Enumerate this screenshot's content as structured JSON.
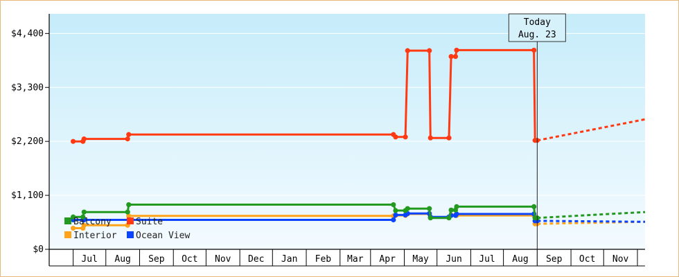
{
  "chart_data": {
    "type": "line",
    "step": true,
    "y_axis": {
      "min": 0,
      "max": 4800,
      "ticks": [
        {
          "value": 0,
          "label": "$0"
        },
        {
          "value": 1100,
          "label": "$1,100"
        },
        {
          "value": 2200,
          "label": "$2,200"
        },
        {
          "value": 3300,
          "label": "$3,300"
        },
        {
          "value": 4400,
          "label": "$4,400"
        }
      ]
    },
    "x_axis": {
      "start": "2024-06-01",
      "end": "2025-11-30",
      "month_labels": [
        "Jul",
        "Aug",
        "Sep",
        "Oct",
        "Nov",
        "Dec",
        "Jan",
        "Feb",
        "Mar",
        "Apr",
        "May",
        "Jun",
        "Jul",
        "Aug",
        "Sep",
        "Oct",
        "Nov"
      ],
      "month_starts": [
        "2024-06-23",
        "2024-07-23",
        "2024-08-23",
        "2024-09-23",
        "2024-10-23",
        "2024-11-23",
        "2024-12-23",
        "2025-01-23",
        "2025-02-23",
        "2025-03-23",
        "2025-04-23",
        "2025-05-23",
        "2025-06-23",
        "2025-07-23",
        "2025-08-23",
        "2025-09-23",
        "2025-10-23",
        "2025-11-23"
      ]
    },
    "today": {
      "date": "2025-08-23",
      "label_line1": "Today",
      "label_line2": "Aug. 23"
    },
    "legend": [
      {
        "name": "Balcony",
        "color": "#22991f"
      },
      {
        "name": "Suite",
        "color": "#ff3a12"
      },
      {
        "name": "Interior",
        "color": "#ffa31a"
      },
      {
        "name": "Ocean View",
        "color": "#0a44ff"
      }
    ],
    "series": [
      {
        "name": "Suite",
        "color": "#ff3a12",
        "points": [
          [
            "2024-06-23",
            2200
          ],
          [
            "2024-07-02",
            2200
          ],
          [
            "2024-07-03",
            2250
          ],
          [
            "2024-08-12",
            2250
          ],
          [
            "2024-08-13",
            2340
          ],
          [
            "2025-04-13",
            2340
          ],
          [
            "2025-04-15",
            2290
          ],
          [
            "2025-04-24",
            2290
          ],
          [
            "2025-04-26",
            4050
          ],
          [
            "2025-05-16",
            4050
          ],
          [
            "2025-05-17",
            2270
          ],
          [
            "2025-06-03",
            2270
          ],
          [
            "2025-06-05",
            3930
          ],
          [
            "2025-06-09",
            3930
          ],
          [
            "2025-06-10",
            4060
          ],
          [
            "2025-08-20",
            4060
          ],
          [
            "2025-08-21",
            2220
          ],
          [
            "2025-08-23",
            2220
          ]
        ],
        "projection": [
          [
            "2025-08-23",
            2220
          ],
          [
            "2025-11-30",
            2650
          ]
        ]
      },
      {
        "name": "Balcony",
        "color": "#22991f",
        "points": [
          [
            "2024-06-23",
            660
          ],
          [
            "2024-07-02",
            660
          ],
          [
            "2024-07-03",
            760
          ],
          [
            "2024-08-12",
            760
          ],
          [
            "2024-08-13",
            910
          ],
          [
            "2025-04-13",
            910
          ],
          [
            "2025-04-15",
            790
          ],
          [
            "2025-04-24",
            790
          ],
          [
            "2025-04-26",
            830
          ],
          [
            "2025-05-16",
            830
          ],
          [
            "2025-05-17",
            640
          ],
          [
            "2025-06-03",
            640
          ],
          [
            "2025-06-05",
            800
          ],
          [
            "2025-06-09",
            800
          ],
          [
            "2025-06-10",
            870
          ],
          [
            "2025-08-20",
            870
          ],
          [
            "2025-08-21",
            640
          ],
          [
            "2025-08-23",
            640
          ]
        ],
        "projection": [
          [
            "2025-08-23",
            640
          ],
          [
            "2025-11-30",
            760
          ]
        ]
      },
      {
        "name": "Interior",
        "color": "#ffa31a",
        "points": [
          [
            "2024-06-23",
            430
          ],
          [
            "2024-07-02",
            430
          ],
          [
            "2024-07-03",
            490
          ],
          [
            "2024-08-12",
            490
          ],
          [
            "2024-08-13",
            680
          ],
          [
            "2025-04-13",
            680
          ],
          [
            "2025-04-15",
            690
          ],
          [
            "2025-04-24",
            690
          ],
          [
            "2025-04-26",
            720
          ],
          [
            "2025-05-16",
            720
          ],
          [
            "2025-05-17",
            650
          ],
          [
            "2025-06-03",
            650
          ],
          [
            "2025-06-05",
            700
          ],
          [
            "2025-06-09",
            700
          ],
          [
            "2025-06-10",
            690
          ],
          [
            "2025-08-20",
            690
          ],
          [
            "2025-08-21",
            520
          ],
          [
            "2025-08-23",
            520
          ]
        ],
        "projection": [
          [
            "2025-08-23",
            520
          ],
          [
            "2025-11-30",
            560
          ]
        ]
      },
      {
        "name": "Ocean View",
        "color": "#0a44ff",
        "points": [
          [
            "2024-06-23",
            600
          ],
          [
            "2024-07-02",
            600
          ],
          [
            "2024-07-03",
            600
          ],
          [
            "2025-04-13",
            600
          ],
          [
            "2025-04-15",
            700
          ],
          [
            "2025-04-24",
            700
          ],
          [
            "2025-04-26",
            730
          ],
          [
            "2025-05-16",
            730
          ],
          [
            "2025-05-17",
            660
          ],
          [
            "2025-06-03",
            660
          ],
          [
            "2025-06-05",
            690
          ],
          [
            "2025-06-09",
            690
          ],
          [
            "2025-06-10",
            720
          ],
          [
            "2025-08-20",
            720
          ],
          [
            "2025-08-21",
            580
          ],
          [
            "2025-08-23",
            580
          ]
        ],
        "projection": [
          [
            "2025-08-23",
            580
          ],
          [
            "2025-11-30",
            560
          ]
        ]
      }
    ]
  }
}
